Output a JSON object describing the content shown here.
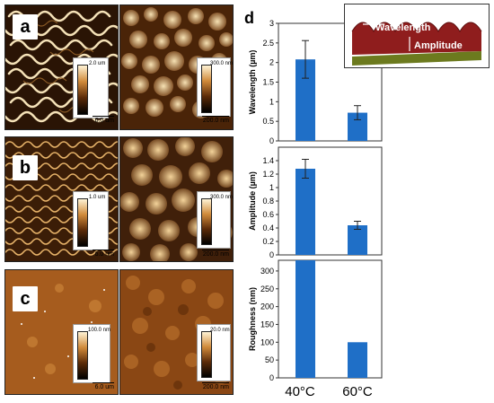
{
  "panel_labels": {
    "a": "a",
    "b": "b",
    "c": "c",
    "d": "d"
  },
  "afm": {
    "a_left": {
      "cbar_max": "2.0 um",
      "scale": "6.0 um"
    },
    "a_right": {
      "cbar_max": "300.0 nm",
      "scale": "200.0 nm"
    },
    "b_left": {
      "cbar_max": "1.0 um",
      "scale": "6.0 um"
    },
    "b_right": {
      "cbar_max": "300.0 nm",
      "scale": "200.0 nm"
    },
    "c_left": {
      "cbar_max": "100.0 nm",
      "scale": "6.0 um"
    },
    "c_right": {
      "cbar_max": "20.0 nm",
      "scale": "200.0 nm"
    }
  },
  "inset": {
    "wavelength_label": "Wavelength",
    "amplitude_label": "Amplitude"
  },
  "colors": {
    "bar": "#1f6fc7",
    "afm_dark": "#3a1c06",
    "afm_light": "#f3d9a6"
  },
  "chart_data": [
    {
      "type": "bar",
      "categories": [
        "40°C",
        "60°C"
      ],
      "values": [
        2.08,
        0.72
      ],
      "errors": [
        0.48,
        0.18
      ],
      "ylabel": "Wavelength (µm)",
      "ylim": [
        0,
        3
      ],
      "yticks": [
        "0",
        "0.5",
        "1",
        "1.5",
        "2",
        "2.5",
        "3"
      ]
    },
    {
      "type": "bar",
      "categories": [
        "40°C",
        "60°C"
      ],
      "values": [
        1.28,
        0.44
      ],
      "errors": [
        0.14,
        0.06
      ],
      "ylabel": "Amplitude (µm)",
      "ylim": [
        0,
        1.6
      ],
      "yticks": [
        "0",
        "0.2",
        "0.4",
        "0.6",
        "0.8",
        "1",
        "1.2",
        "1.4"
      ]
    },
    {
      "type": "bar",
      "categories": [
        "40°C",
        "60°C"
      ],
      "values": [
        330,
        100
      ],
      "ylabel": "Roughness (nm)",
      "ylim": [
        0,
        330
      ],
      "yticks": [
        "0",
        "50",
        "100",
        "150",
        "200",
        "250",
        "300"
      ]
    }
  ]
}
